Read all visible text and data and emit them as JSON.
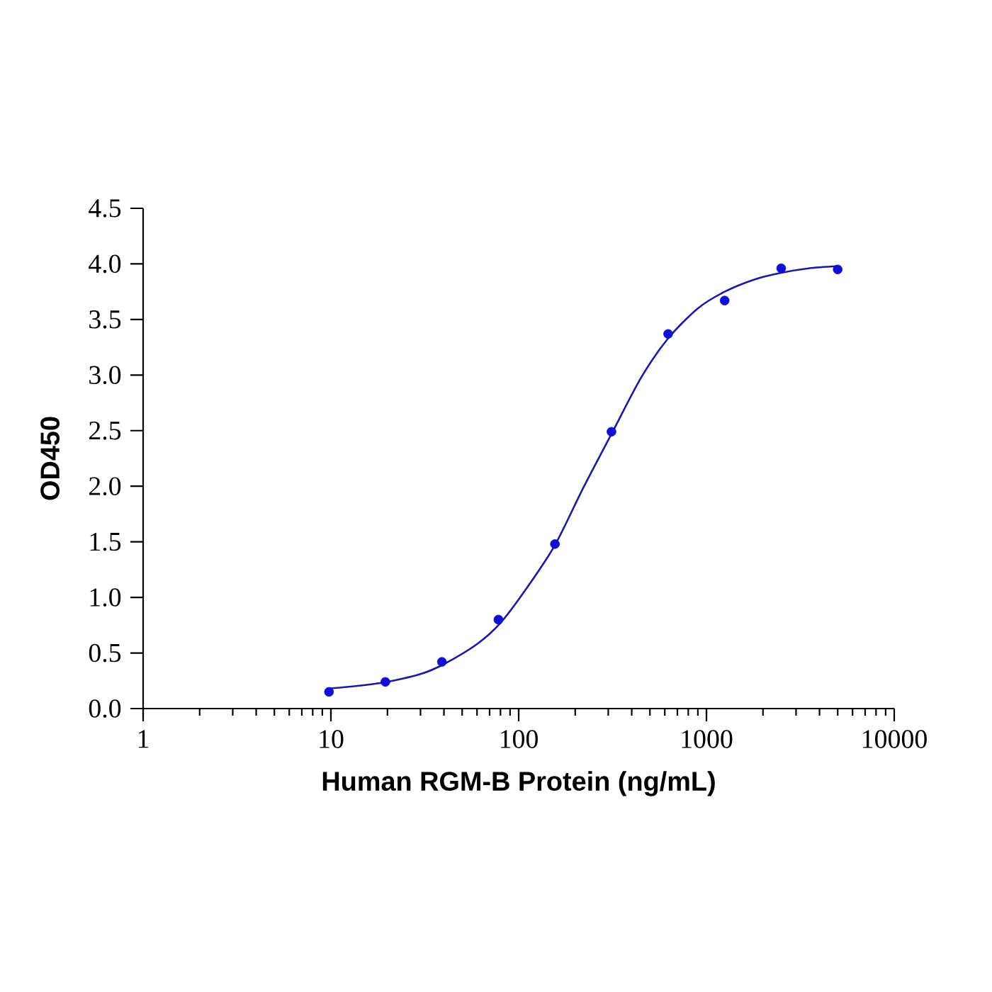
{
  "chart_data": {
    "type": "scatter",
    "xlabel": "Human RGM-B Protein (ng/mL)",
    "ylabel": "OD450",
    "log": "x",
    "grid": false,
    "xlim": [
      1,
      10000
    ],
    "xticks": [
      1,
      10,
      100,
      1000,
      10000
    ],
    "ylim": [
      0,
      4.5
    ],
    "yticks": [
      {
        "value": 0,
        "label": "0.0"
      },
      {
        "value": 0.5,
        "label": "0.5"
      },
      {
        "value": 1,
        "label": "1.0"
      },
      {
        "value": 1.5,
        "label": "1.5"
      },
      {
        "value": 2,
        "label": "2.0"
      },
      {
        "value": 2.5,
        "label": "2.5"
      },
      {
        "value": 3,
        "label": "3.0"
      },
      {
        "value": 3.5,
        "label": "3.5"
      },
      {
        "value": 4,
        "label": "4.0"
      },
      {
        "value": 4.5,
        "label": "4.5"
      }
    ],
    "series": [
      {
        "marker": "circle",
        "color": "#1010d0",
        "x": [
          9.77,
          19.5,
          39,
          78,
          156,
          312,
          625,
          1250,
          2500,
          5000
        ],
        "values": [
          0.15,
          0.24,
          0.42,
          0.8,
          1.48,
          2.49,
          3.37,
          3.67,
          3.96,
          3.95
        ]
      },
      {
        "type": "line",
        "marker": "none",
        "color": "#1a1a9a",
        "line_style": "solid",
        "x": [
          9.77,
          15,
          20,
          30,
          40,
          60,
          80,
          110,
          156,
          220,
          312,
          450,
          625,
          900,
          1250,
          1800,
          2500,
          3500,
          5000
        ],
        "values": [
          0.18,
          0.21,
          0.24,
          0.31,
          0.4,
          0.58,
          0.77,
          1.08,
          1.47,
          1.98,
          2.47,
          2.98,
          3.33,
          3.6,
          3.75,
          3.86,
          3.92,
          3.96,
          3.98
        ]
      }
    ]
  }
}
